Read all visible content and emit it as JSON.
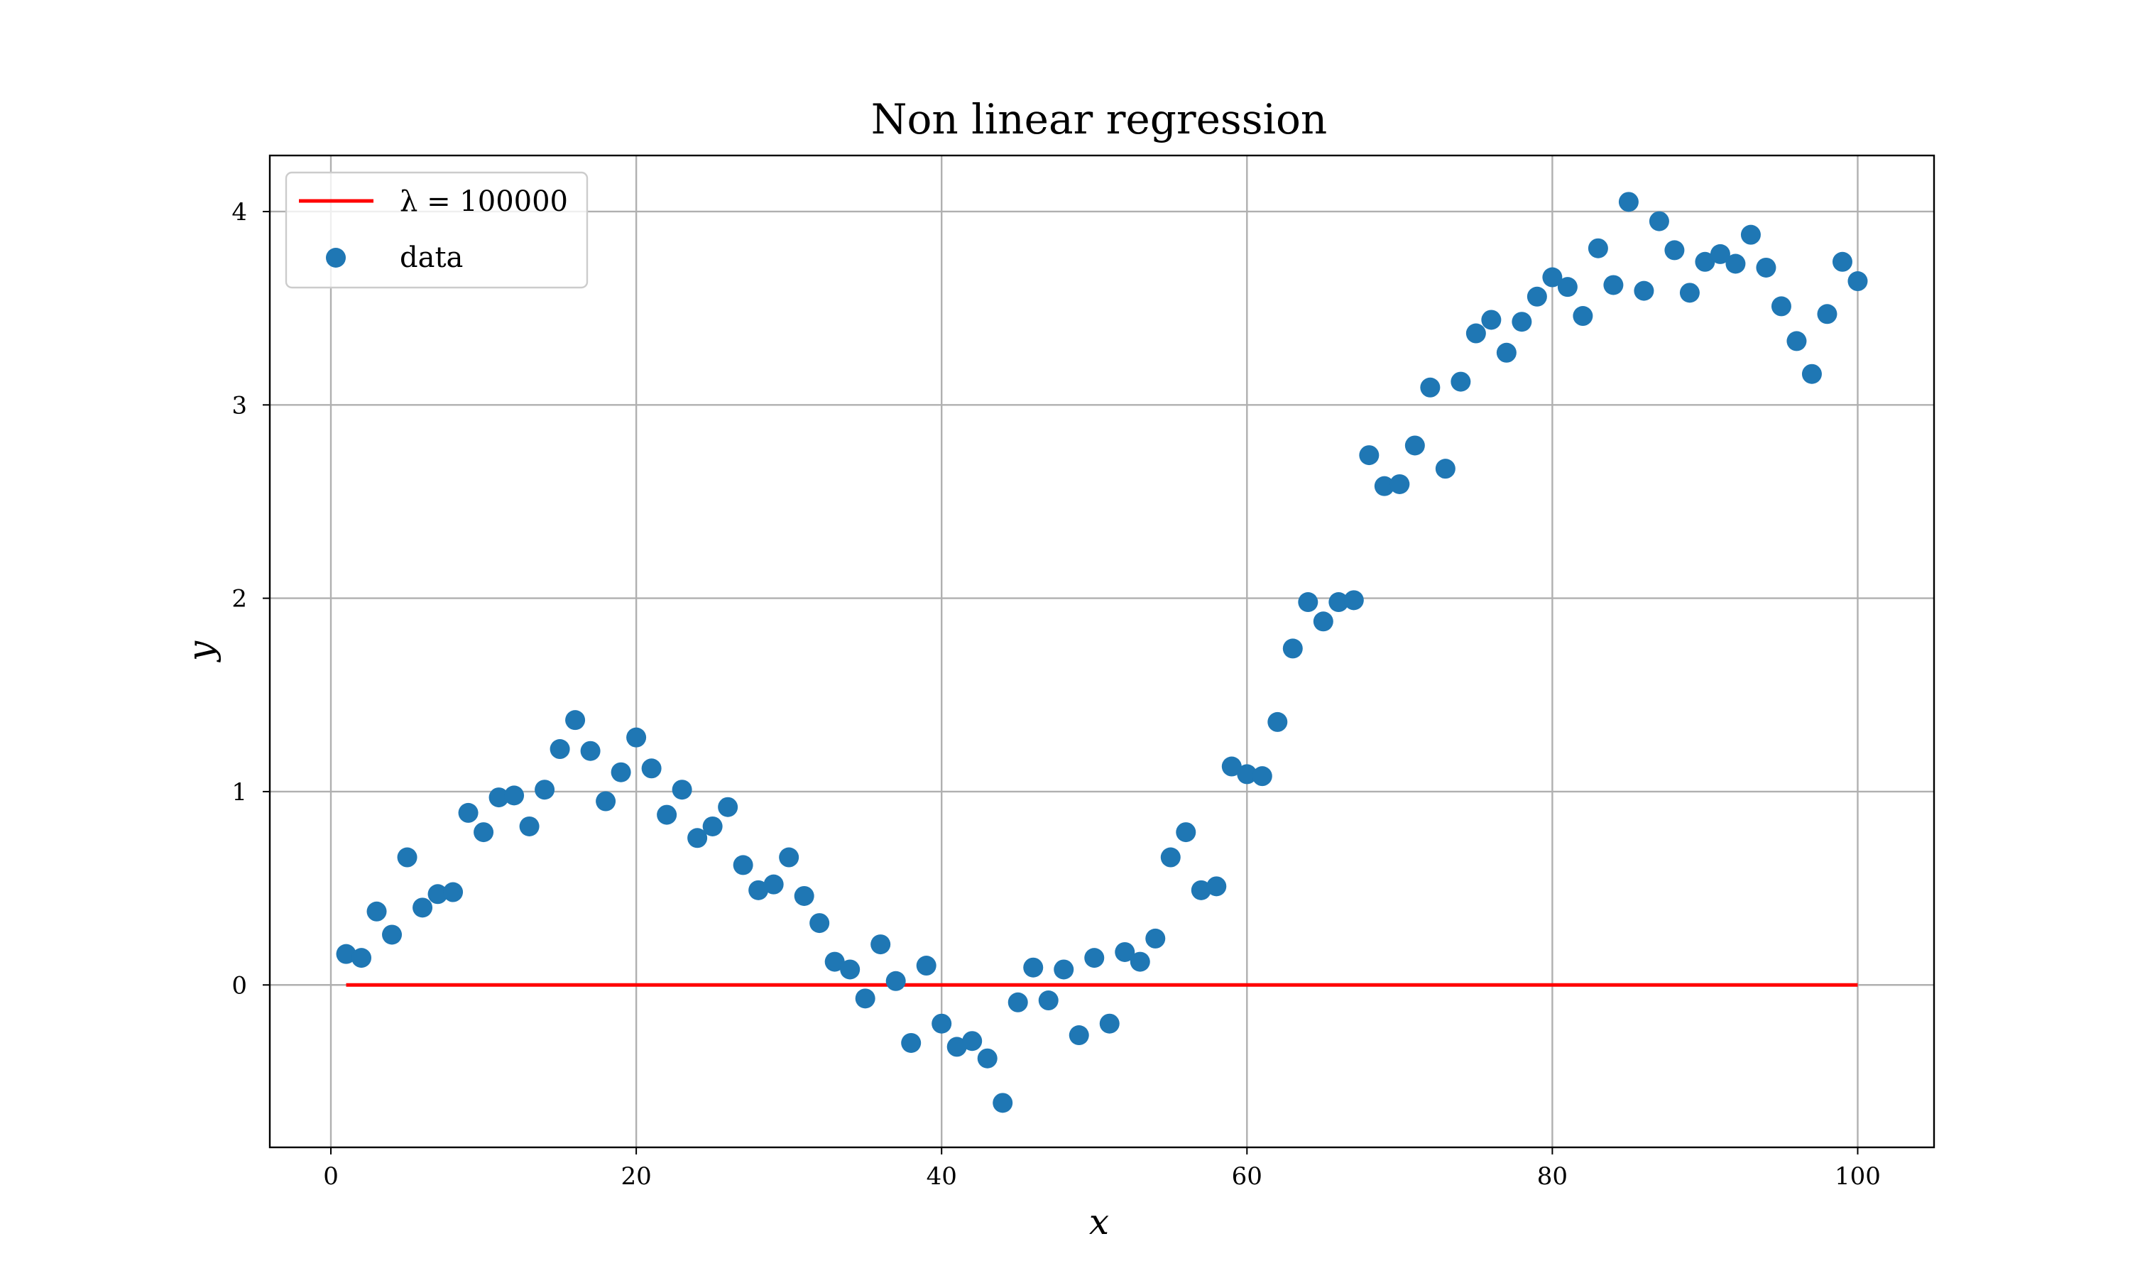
{
  "chart_data": {
    "type": "scatter",
    "title": "Non linear regression",
    "xlabel": "x",
    "ylabel": "y",
    "xlim": [
      -4,
      105
    ],
    "ylim": [
      -0.84,
      4.29
    ],
    "xticks": [
      0,
      20,
      40,
      60,
      80,
      100
    ],
    "yticks": [
      0,
      1,
      2,
      3,
      4
    ],
    "grid": true,
    "legend_position": "top-left",
    "series": [
      {
        "name": "λ = 100000",
        "kind": "line",
        "color": "#ff0000",
        "x": [
          1,
          100
        ],
        "y": [
          0.0,
          0.0
        ]
      },
      {
        "name": "data",
        "kind": "scatter",
        "color": "#1f77b4",
        "x": [
          1,
          2,
          3,
          4,
          5,
          6,
          7,
          8,
          9,
          10,
          11,
          12,
          13,
          14,
          15,
          16,
          17,
          18,
          19,
          20,
          21,
          22,
          23,
          24,
          25,
          26,
          27,
          28,
          29,
          30,
          31,
          32,
          33,
          34,
          35,
          36,
          37,
          38,
          39,
          40,
          41,
          42,
          43,
          44,
          45,
          46,
          47,
          48,
          49,
          50,
          51,
          52,
          53,
          54,
          55,
          56,
          57,
          58,
          59,
          60,
          61,
          62,
          63,
          64,
          65,
          66,
          67,
          68,
          69,
          70,
          71,
          72,
          73,
          74,
          75,
          76,
          77,
          78,
          79,
          80,
          81,
          82,
          83,
          84,
          85,
          86,
          87,
          88,
          89,
          90,
          91,
          92,
          93,
          94,
          95,
          96,
          97,
          98,
          99,
          100
        ],
        "y": [
          0.16,
          0.14,
          0.38,
          0.26,
          0.66,
          0.4,
          0.47,
          0.48,
          0.89,
          0.79,
          0.97,
          0.98,
          0.82,
          1.01,
          1.22,
          1.37,
          1.21,
          0.95,
          1.1,
          1.28,
          1.12,
          0.88,
          1.01,
          0.76,
          0.82,
          0.92,
          0.62,
          0.49,
          0.52,
          0.66,
          0.46,
          0.32,
          0.12,
          0.08,
          -0.07,
          0.21,
          0.02,
          -0.3,
          0.1,
          -0.2,
          -0.32,
          -0.29,
          -0.38,
          -0.61,
          -0.09,
          0.09,
          -0.08,
          0.08,
          -0.26,
          0.14,
          -0.2,
          0.17,
          0.12,
          0.24,
          0.66,
          0.79,
          0.49,
          0.51,
          1.13,
          1.09,
          1.08,
          1.36,
          1.74,
          1.98,
          1.88,
          1.98,
          1.99,
          2.74,
          2.58,
          2.59,
          2.79,
          3.09,
          2.67,
          3.12,
          3.37,
          3.44,
          3.27,
          3.43,
          3.56,
          3.66,
          3.61,
          3.46,
          3.81,
          3.62,
          4.05,
          3.59,
          3.95,
          3.8,
          3.58,
          3.74,
          3.78,
          3.73,
          3.88,
          3.71,
          3.51,
          3.33,
          3.16,
          3.47,
          3.74,
          3.64
        ]
      }
    ]
  }
}
